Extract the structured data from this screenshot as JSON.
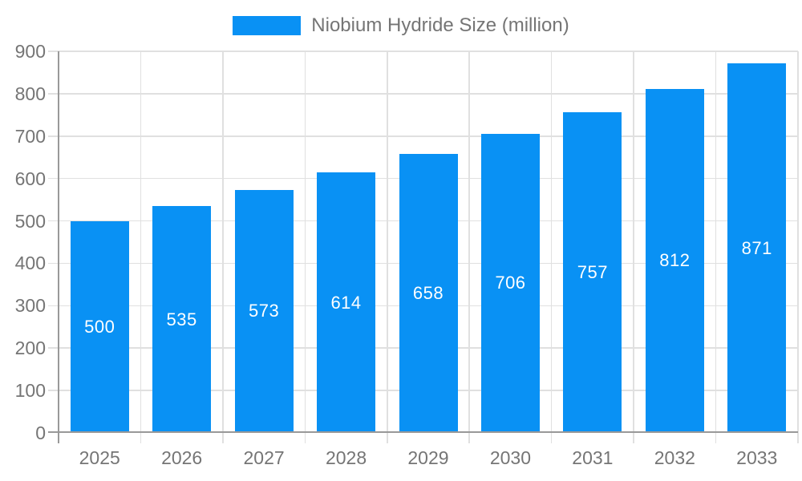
{
  "legend": {
    "label": "Niobium Hydride Size (million)"
  },
  "chart_data": {
    "type": "bar",
    "title": "Niobium Hydride Size (million)",
    "categories": [
      "2025",
      "2026",
      "2027",
      "2028",
      "2029",
      "2030",
      "2031",
      "2032",
      "2033"
    ],
    "values": [
      500,
      535,
      573,
      614,
      658,
      706,
      757,
      812,
      871
    ],
    "series_name": "Niobium Hydride Size (million)",
    "xlabel": "",
    "ylabel": "",
    "ylim": [
      0,
      900
    ],
    "ytick_step": 100,
    "yticks": [
      0,
      100,
      200,
      300,
      400,
      500,
      600,
      700,
      800,
      900
    ],
    "grid": true,
    "legend_position": "top",
    "value_label_position": "inside-center",
    "colors": {
      "bar": "#0991f4",
      "value_label": "#ffffff",
      "axis": "#999999",
      "gridline": "#e0e0e0",
      "text": "#757575",
      "background": "#ffffff"
    }
  }
}
